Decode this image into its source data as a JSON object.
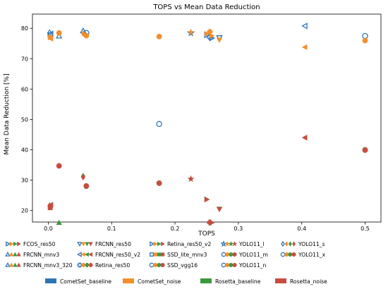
{
  "chart_data": {
    "type": "scatter",
    "title": "TOPS vs Mean Data Reduction",
    "xlabel": "TOPS",
    "ylabel": "Mean Data Reduction [%]",
    "xlim": [
      -0.025,
      0.525
    ],
    "ylim": [
      16.2,
      84.7
    ],
    "xticks": [
      0.0,
      0.1,
      0.2,
      0.3,
      0.4,
      0.5
    ],
    "xtick_labels": [
      "0.0",
      "0.1",
      "0.2",
      "0.3",
      "0.4",
      "0.5"
    ],
    "yticks": [
      20,
      30,
      40,
      50,
      60,
      70,
      80
    ],
    "ytick_labels": [
      "20",
      "30",
      "40",
      "50",
      "60",
      "70",
      "80"
    ],
    "grid": false,
    "colors": {
      "CometSet_baseline": "#2f75b5",
      "CometSet_noise": "#f28e2b",
      "Rosetta_baseline": "#3a9a3a",
      "Rosetta_noise": "#c94c3f"
    },
    "model_legend": [
      {
        "name": "FCOS_res50",
        "marker": "tri-right"
      },
      {
        "name": "FRCNN_mnv3",
        "marker": "tri-up"
      },
      {
        "name": "FRCNN_mnv3_320",
        "marker": "tri-up"
      },
      {
        "name": "FRCNN_res50",
        "marker": "tri-down"
      },
      {
        "name": "FRCNN_res50_v2",
        "marker": "tri-left"
      },
      {
        "name": "Retina_res50",
        "marker": "plus"
      },
      {
        "name": "Retina_res50_v2",
        "marker": "tri-right"
      },
      {
        "name": "SSD_lite_mnv3",
        "marker": "square"
      },
      {
        "name": "SSD_vgg16",
        "marker": "circle"
      },
      {
        "name": "YOLO11_l",
        "marker": "star"
      },
      {
        "name": "YOLO11_m",
        "marker": "circle"
      },
      {
        "name": "YOLO11_n",
        "marker": "circle"
      },
      {
        "name": "YOLO11_s",
        "marker": "diamond"
      },
      {
        "name": "YOLO11_x",
        "marker": "circle"
      }
    ],
    "dataset_legend": [
      "CometSet_baseline",
      "CometSet_noise",
      "Rosetta_baseline",
      "Rosetta_noise"
    ],
    "series": [
      {
        "name": "CometSet_baseline",
        "points": [
          {
            "x": 0.002,
            "y": 78.5,
            "marker": "diamond",
            "fill": false
          },
          {
            "x": 0.003,
            "y": 77.8,
            "marker": "square",
            "fill": false
          },
          {
            "x": 0.004,
            "y": 78.2,
            "marker": "tri-left",
            "fill": false
          },
          {
            "x": 0.017,
            "y": 77.5,
            "marker": "tri-up",
            "fill": false
          },
          {
            "x": 0.055,
            "y": 79.2,
            "marker": "tri-up",
            "fill": false
          },
          {
            "x": 0.06,
            "y": 78.5,
            "marker": "circle",
            "fill": false
          },
          {
            "x": 0.175,
            "y": 48.5,
            "marker": "circle",
            "fill": false
          },
          {
            "x": 0.225,
            "y": 78.5,
            "marker": "star",
            "fill": false
          },
          {
            "x": 0.25,
            "y": 77.8,
            "marker": "tri-right",
            "fill": false
          },
          {
            "x": 0.255,
            "y": 77.2,
            "marker": "plus",
            "fill": false
          },
          {
            "x": 0.258,
            "y": 76.8,
            "marker": "tri-right",
            "fill": false
          },
          {
            "x": 0.27,
            "y": 76.9,
            "marker": "tri-down",
            "fill": false
          },
          {
            "x": 0.405,
            "y": 80.8,
            "marker": "tri-left",
            "fill": false
          },
          {
            "x": 0.5,
            "y": 77.5,
            "marker": "circle",
            "fill": false
          }
        ]
      },
      {
        "name": "CometSet_noise",
        "points": [
          {
            "x": 0.002,
            "y": 77.2,
            "marker": "diamond",
            "fill": true
          },
          {
            "x": 0.003,
            "y": 77.0,
            "marker": "square",
            "fill": true
          },
          {
            "x": 0.004,
            "y": 76.6,
            "marker": "tri-left",
            "fill": true
          },
          {
            "x": 0.017,
            "y": 78.5,
            "marker": "circle",
            "fill": true
          },
          {
            "x": 0.055,
            "y": 78.3,
            "marker": "diamond",
            "fill": true
          },
          {
            "x": 0.06,
            "y": 77.6,
            "marker": "circle",
            "fill": true
          },
          {
            "x": 0.175,
            "y": 77.3,
            "marker": "circle",
            "fill": true
          },
          {
            "x": 0.225,
            "y": 78.7,
            "marker": "star",
            "fill": true
          },
          {
            "x": 0.25,
            "y": 78.2,
            "marker": "tri-right",
            "fill": true
          },
          {
            "x": 0.255,
            "y": 78.9,
            "marker": "plus",
            "fill": true
          },
          {
            "x": 0.258,
            "y": 77.6,
            "marker": "tri-right",
            "fill": true
          },
          {
            "x": 0.27,
            "y": 76.2,
            "marker": "tri-down",
            "fill": true
          },
          {
            "x": 0.405,
            "y": 73.8,
            "marker": "tri-left",
            "fill": true
          },
          {
            "x": 0.5,
            "y": 76.0,
            "marker": "circle",
            "fill": true
          }
        ]
      },
      {
        "name": "Rosetta_baseline",
        "points": [
          {
            "x": 0.002,
            "y": 21.5,
            "marker": "diamond",
            "fill": true
          },
          {
            "x": 0.003,
            "y": 21.0,
            "marker": "square",
            "fill": true
          },
          {
            "x": 0.004,
            "y": 21.9,
            "marker": "tri-left",
            "fill": true
          },
          {
            "x": 0.017,
            "y": 16.0,
            "marker": "tri-up",
            "fill": true
          },
          {
            "x": 0.055,
            "y": 31.3,
            "marker": "diamond",
            "fill": true
          },
          {
            "x": 0.06,
            "y": 28.0,
            "marker": "circle",
            "fill": true
          },
          {
            "x": 0.175,
            "y": 29.0,
            "marker": "circle",
            "fill": true
          },
          {
            "x": 0.225,
            "y": 30.4,
            "marker": "star",
            "fill": true
          },
          {
            "x": 0.25,
            "y": 23.7,
            "marker": "tri-right",
            "fill": true
          },
          {
            "x": 0.255,
            "y": 16.0,
            "marker": "plus",
            "fill": true
          },
          {
            "x": 0.258,
            "y": 16.0,
            "marker": "tri-right",
            "fill": true
          },
          {
            "x": 0.27,
            "y": 20.5,
            "marker": "tri-down",
            "fill": true
          },
          {
            "x": 0.405,
            "y": 44.0,
            "marker": "tri-left",
            "fill": true
          },
          {
            "x": 0.5,
            "y": 40.0,
            "marker": "circle",
            "fill": true
          }
        ]
      },
      {
        "name": "Rosetta_noise",
        "points": [
          {
            "x": 0.002,
            "y": 21.6,
            "marker": "diamond",
            "fill": true
          },
          {
            "x": 0.003,
            "y": 20.9,
            "marker": "square",
            "fill": true
          },
          {
            "x": 0.004,
            "y": 21.8,
            "marker": "tri-left",
            "fill": true
          },
          {
            "x": 0.017,
            "y": 34.7,
            "marker": "circle",
            "fill": true
          },
          {
            "x": 0.055,
            "y": 31.0,
            "marker": "diamond",
            "fill": true
          },
          {
            "x": 0.06,
            "y": 28.1,
            "marker": "circle",
            "fill": true
          },
          {
            "x": 0.175,
            "y": 29.0,
            "marker": "circle",
            "fill": true
          },
          {
            "x": 0.225,
            "y": 30.4,
            "marker": "star",
            "fill": true
          },
          {
            "x": 0.25,
            "y": 23.6,
            "marker": "tri-right",
            "fill": true
          },
          {
            "x": 0.255,
            "y": 16.1,
            "marker": "plus",
            "fill": true
          },
          {
            "x": 0.258,
            "y": 16.0,
            "marker": "tri-right",
            "fill": true
          },
          {
            "x": 0.27,
            "y": 20.4,
            "marker": "tri-down",
            "fill": true
          },
          {
            "x": 0.405,
            "y": 44.0,
            "marker": "tri-left",
            "fill": true
          },
          {
            "x": 0.5,
            "y": 39.9,
            "marker": "circle",
            "fill": true
          }
        ]
      }
    ]
  }
}
